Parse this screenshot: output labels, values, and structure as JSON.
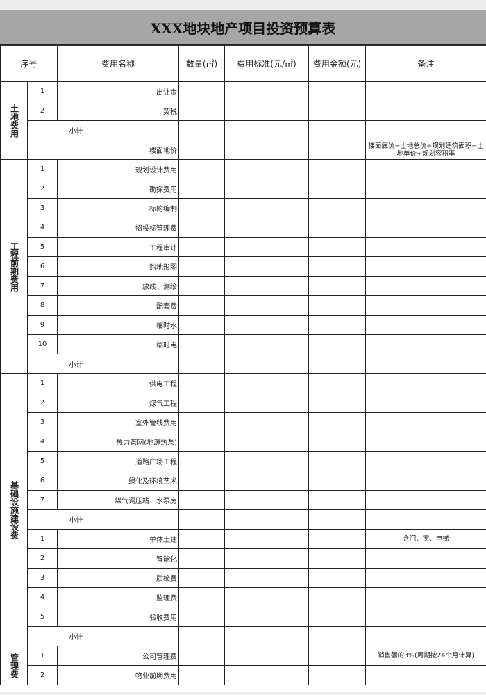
{
  "title": "XXX地块地产项目投资预算表",
  "headers": [
    "序号",
    "费用名称",
    "数量(㎡)",
    "费用标准(元/㎡)",
    "费用金额(元)",
    "备注"
  ],
  "groups": [
    {
      "label": "土地费用",
      "rows": [
        {
          "type": "item",
          "seq": "1",
          "name": "出让金",
          "note": ""
        },
        {
          "type": "item",
          "seq": "2",
          "name": "契税",
          "note": ""
        },
        {
          "type": "sub",
          "name": "小计",
          "note": ""
        },
        {
          "type": "span",
          "name": "楼面地价",
          "note": "楼面底价=土地总价÷规划建筑面积=土地单价÷规划容积率"
        }
      ]
    },
    {
      "label": "工程前期费用",
      "rows": [
        {
          "type": "item",
          "seq": "1",
          "name": "规划设计费用",
          "note": ""
        },
        {
          "type": "item",
          "seq": "2",
          "name": "勘探费用",
          "note": ""
        },
        {
          "type": "item",
          "seq": "3",
          "name": "标的编制",
          "note": ""
        },
        {
          "type": "item",
          "seq": "4",
          "name": "招投标管理费",
          "note": ""
        },
        {
          "type": "item",
          "seq": "5",
          "name": "工程审计",
          "note": ""
        },
        {
          "type": "item",
          "seq": "6",
          "name": "购地形图",
          "note": ""
        },
        {
          "type": "item",
          "seq": "7",
          "name": "放线、测绘",
          "note": ""
        },
        {
          "type": "item",
          "seq": "8",
          "name": "配套费",
          "note": ""
        },
        {
          "type": "item",
          "seq": "9",
          "name": "临时水",
          "note": ""
        },
        {
          "type": "item",
          "seq": "10",
          "name": "临时电",
          "note": ""
        },
        {
          "type": "sub",
          "name": "小计",
          "note": ""
        }
      ]
    },
    {
      "label": "基础设施建设费",
      "rows": [
        {
          "type": "item",
          "seq": "1",
          "name": "供电工程",
          "note": ""
        },
        {
          "type": "item",
          "seq": "2",
          "name": "煤气工程",
          "note": ""
        },
        {
          "type": "item",
          "seq": "3",
          "name": "室外管线费用",
          "note": ""
        },
        {
          "type": "item",
          "seq": "4",
          "name": "热力管网(地源热泵)",
          "note": ""
        },
        {
          "type": "item",
          "seq": "5",
          "name": "道路广场工程",
          "note": ""
        },
        {
          "type": "item",
          "seq": "6",
          "name": "绿化及环境艺术",
          "note": ""
        },
        {
          "type": "item",
          "seq": "7",
          "name": "煤气调压站、水泵房",
          "note": ""
        },
        {
          "type": "sub",
          "name": "小计",
          "note": ""
        },
        {
          "type": "item",
          "seq": "1",
          "name": "单体土建",
          "note": "含门、窗、电梯"
        },
        {
          "type": "item",
          "seq": "2",
          "name": "智能化",
          "note": ""
        },
        {
          "type": "item",
          "seq": "3",
          "name": "质检费",
          "note": ""
        },
        {
          "type": "item",
          "seq": "4",
          "name": "监理费",
          "note": ""
        },
        {
          "type": "item",
          "seq": "5",
          "name": "验收费用",
          "note": ""
        },
        {
          "type": "sub",
          "name": "小计",
          "note": ""
        }
      ]
    },
    {
      "label": "管理费",
      "rows": [
        {
          "type": "item",
          "seq": "1",
          "name": "公司管理费",
          "note": "销售额的3%(周期按24个月计算)"
        },
        {
          "type": "item",
          "seq": "2",
          "name": "物业前期费用",
          "note": ""
        }
      ]
    }
  ]
}
